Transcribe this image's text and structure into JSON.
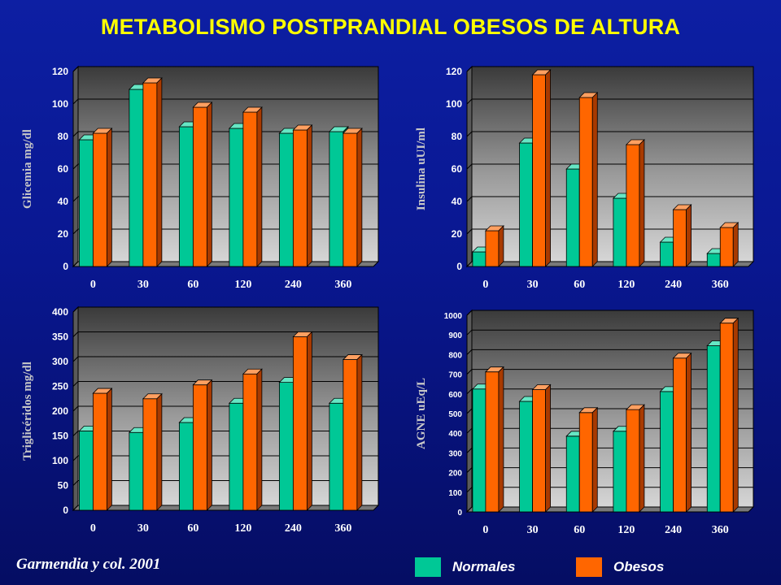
{
  "title": "METABOLISMO POSTPRANDIAL OBESOS  DE ALTURA",
  "citation": "Garmendia y col. 2001",
  "legend": [
    {
      "label": "Normales",
      "color": "#00c896"
    },
    {
      "label": "Obesos",
      "color": "#ff6600"
    }
  ],
  "chart_data": [
    {
      "type": "bar",
      "ylabel": "Glicemia mg/dl",
      "xlabel": "",
      "categories": [
        "0",
        "30",
        "60",
        "120",
        "240",
        "360"
      ],
      "ylim": [
        0,
        120
      ],
      "yticks": [
        0,
        20,
        40,
        60,
        80,
        100,
        120
      ],
      "series": [
        {
          "name": "Normales",
          "values": [
            78,
            109,
            86,
            85,
            82,
            83
          ]
        },
        {
          "name": "Obesos",
          "values": [
            82,
            113,
            98,
            95,
            84,
            82
          ]
        }
      ]
    },
    {
      "type": "bar",
      "ylabel": "Insulina uUI/ml",
      "xlabel": "",
      "categories": [
        "0",
        "30",
        "60",
        "120",
        "240",
        "360"
      ],
      "ylim": [
        0,
        120
      ],
      "yticks": [
        0,
        20,
        40,
        60,
        80,
        100,
        120
      ],
      "series": [
        {
          "name": "Normales",
          "values": [
            9,
            76,
            60,
            42,
            15,
            8
          ]
        },
        {
          "name": "Obesos",
          "values": [
            22,
            118,
            104,
            75,
            35,
            24
          ]
        }
      ]
    },
    {
      "type": "bar",
      "ylabel": "Triglicéridos mg/dl",
      "xlabel": "",
      "categories": [
        "0",
        "30",
        "60",
        "120",
        "240",
        "360"
      ],
      "ylim": [
        0,
        400
      ],
      "yticks": [
        0,
        50,
        100,
        150,
        200,
        250,
        300,
        350,
        400
      ],
      "series": [
        {
          "name": "Normales",
          "values": [
            160,
            157,
            177,
            216,
            258,
            216
          ]
        },
        {
          "name": "Obesos",
          "values": [
            236,
            225,
            253,
            275,
            350,
            304
          ]
        }
      ]
    },
    {
      "type": "bar",
      "ylabel": "AGNE uEq/L",
      "xlabel": "",
      "categories": [
        "0",
        "30",
        "60",
        "120",
        "240",
        "360"
      ],
      "ylim": [
        0,
        1000
      ],
      "yticks": [
        0,
        100,
        200,
        300,
        400,
        500,
        600,
        700,
        800,
        900,
        1000
      ],
      "series": [
        {
          "name": "Normales",
          "values": [
            625,
            562,
            385,
            410,
            612,
            845
          ]
        },
        {
          "name": "Obesos",
          "values": [
            712,
            622,
            505,
            520,
            782,
            960
          ]
        }
      ]
    }
  ]
}
